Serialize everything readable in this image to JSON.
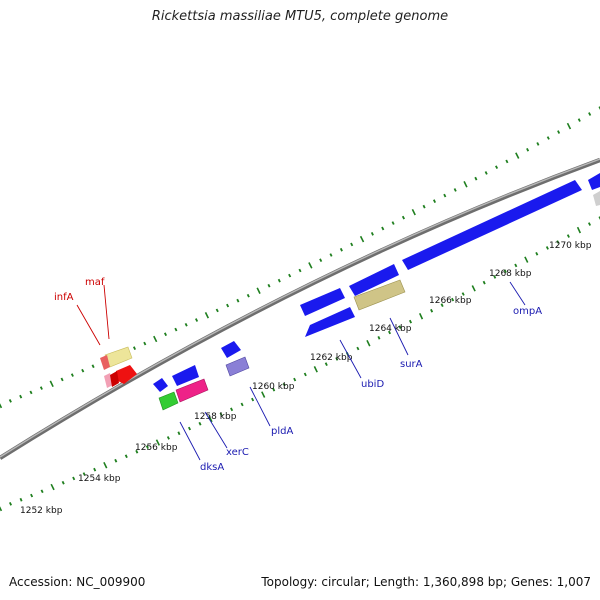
{
  "title": "Rickettsia massiliae MTU5, complete genome",
  "footer": {
    "accession": "Accession: NC_009900",
    "summary": "Topology: circular; Length: 1,360,898 bp; Genes: 1,007"
  },
  "ticks": [
    {
      "label": "1252 kbp"
    },
    {
      "label": "1254 kbp"
    },
    {
      "label": "1256 kbp"
    },
    {
      "label": "1258 kbp"
    },
    {
      "label": "1260 kbp"
    },
    {
      "label": "1262 kbp"
    },
    {
      "label": "1264 kbp"
    },
    {
      "label": "1266 kbp"
    },
    {
      "label": "1268 kbp"
    },
    {
      "label": "1270 kbp"
    }
  ],
  "gene_labels": [
    {
      "name": "infA"
    },
    {
      "name": "maf"
    },
    {
      "name": "dksA"
    },
    {
      "name": "xerC"
    },
    {
      "name": "pldA"
    },
    {
      "name": "ubiD"
    },
    {
      "name": "surA"
    },
    {
      "name": "ompA"
    }
  ],
  "colors": {
    "backbone": "#8a8a8a",
    "tick": "#1f7f1f",
    "gene_blue": "#1a1aee",
    "gene_yellow": "#ede59a",
    "gene_olive": "#cfc487",
    "gene_red": "#ee1111",
    "gene_pink": "#ee2288",
    "gene_green": "#33cc33",
    "gene_purple": "#8a7fd6",
    "label_blue": "#1a1ab0",
    "label_red": "#cc0000"
  }
}
